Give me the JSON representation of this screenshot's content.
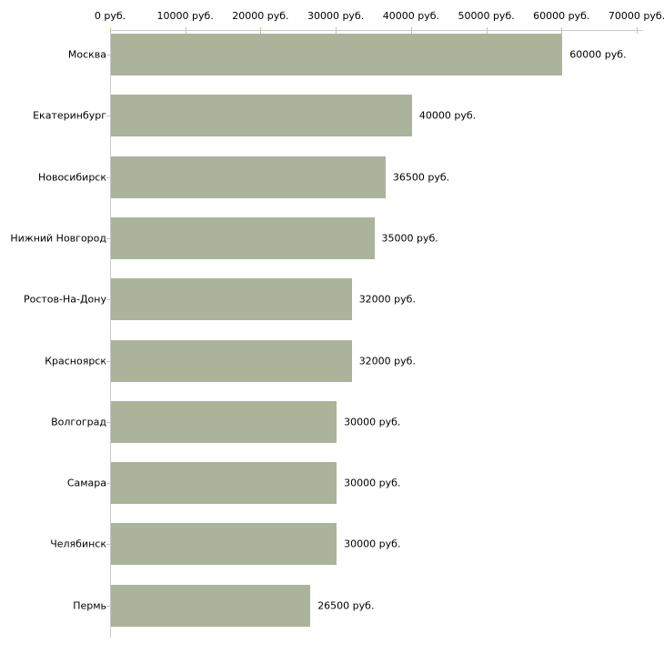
{
  "chart_data": {
    "type": "bar",
    "orientation": "horizontal",
    "title": "",
    "categories": [
      "Москва",
      "Екатеринбург",
      "Новосибирск",
      "Нижний Новгород",
      "Ростов-На-Дону",
      "Красноярск",
      "Волгоград",
      "Самара",
      "Челябинск",
      "Пермь"
    ],
    "values": [
      60000,
      40000,
      36500,
      35000,
      32000,
      32000,
      30000,
      30000,
      30000,
      26500
    ],
    "value_labels": [
      "60000 руб.",
      "40000 руб.",
      "36500 руб.",
      "35000 руб.",
      "32000 руб.",
      "32000 руб.",
      "30000 руб.",
      "30000 руб.",
      "30000 руб.",
      "26500 руб."
    ],
    "x_axis": {
      "min": 0,
      "max": 70000,
      "tick_step": 10000,
      "tick_values": [
        0,
        10000,
        20000,
        30000,
        40000,
        50000,
        60000,
        70000
      ],
      "tick_labels": [
        "0 руб.",
        "10000 руб.",
        "20000 руб.",
        "30000 руб.",
        "40000 руб.",
        "50000 руб.",
        "60000 руб.",
        "70000 руб."
      ],
      "unit": "руб.",
      "position": "top"
    },
    "ylabel": "",
    "xlabel": "",
    "legend": null,
    "grid": false,
    "colors": {
      "bar": "#acb39b",
      "axis": "#c9c9c9",
      "tick": "#c2c69e",
      "text": "#000000",
      "background": "#ffffff"
    }
  }
}
